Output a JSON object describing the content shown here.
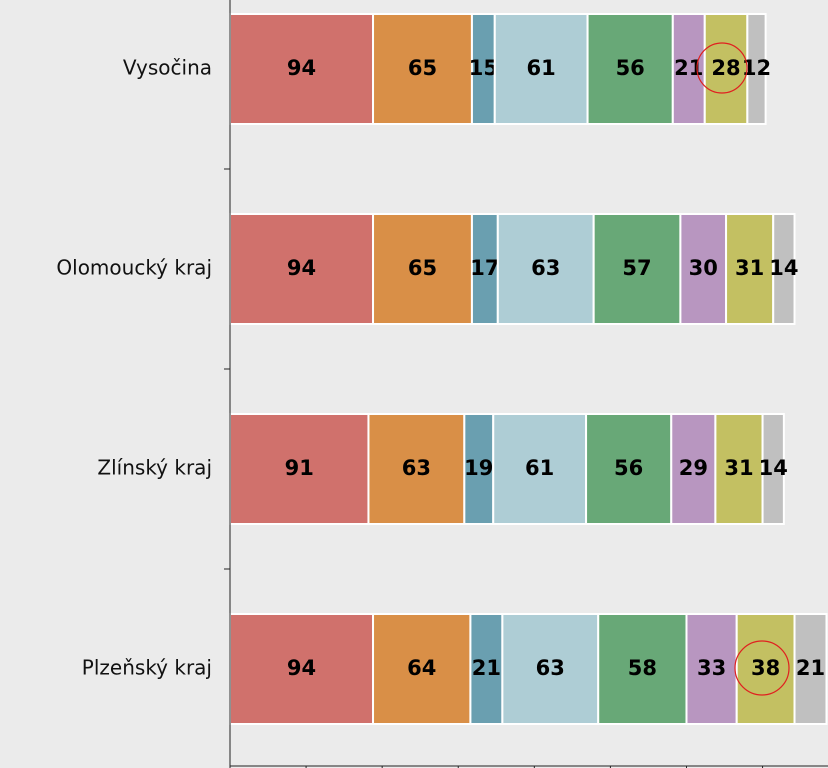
{
  "chart_data": {
    "type": "stacked-barh",
    "categories": [
      "Vysočina",
      "Olomoucký kraj",
      "Zlínský kraj",
      "Plzeňský kraj"
    ],
    "series": [
      {
        "color": "#d0716c",
        "values": [
          94,
          94,
          91,
          94
        ]
      },
      {
        "color": "#d98f47",
        "values": [
          65,
          65,
          63,
          64
        ]
      },
      {
        "color": "#6a9fb0",
        "values": [
          15,
          17,
          19,
          21
        ]
      },
      {
        "color": "#aecdd5",
        "values": [
          61,
          63,
          61,
          63
        ]
      },
      {
        "color": "#68a877",
        "values": [
          56,
          57,
          56,
          58
        ]
      },
      {
        "color": "#b896c0",
        "values": [
          21,
          30,
          29,
          33
        ]
      },
      {
        "color": "#c3c062",
        "values": [
          28,
          31,
          31,
          38
        ]
      },
      {
        "color": "#c0c0c0",
        "values": [
          12,
          14,
          14,
          21
        ]
      }
    ],
    "xlim": [
      0,
      393
    ],
    "xticks": [
      0,
      50,
      100,
      150,
      200,
      250,
      300,
      350
    ]
  }
}
